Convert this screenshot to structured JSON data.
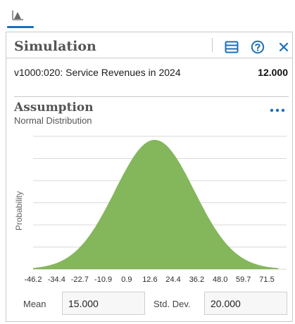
{
  "toolbar": {
    "tabs": [
      {
        "icon": "chart-tab-icon",
        "active": true
      }
    ],
    "accent_color": "#1d6fb8"
  },
  "panel": {
    "title": "Simulation",
    "actions": [
      {
        "icon": "table-icon"
      },
      {
        "icon": "help-icon"
      },
      {
        "icon": "close-icon"
      }
    ],
    "icon_color": "#1d6fb8"
  },
  "forecast": {
    "name": "v1000:020: Service Revenues in 2024",
    "value": "12.000"
  },
  "assumption": {
    "title": "Assumption",
    "distribution": "Normal Distribution",
    "more_icon": "more-horizontal-icon",
    "mean_label": "Mean",
    "mean_value": "15.000",
    "std_label": "Std. Dev.",
    "std_value": "20.000"
  },
  "chart_data": {
    "type": "area",
    "title": "",
    "xlabel": "",
    "ylabel": "Probability",
    "distribution": "normal",
    "mean": 15,
    "std_dev": 20,
    "x_tick_labels": [
      "-46.2",
      "-34.4",
      "-22.7",
      "-10.9",
      "0.9",
      "12.6",
      "24.4",
      "36.2",
      "48.0",
      "59.7",
      "71.5"
    ],
    "xlim": [
      -46.2,
      77.4
    ],
    "grid": true,
    "y_tick_labels": false,
    "fill_color": "#84b65b"
  }
}
